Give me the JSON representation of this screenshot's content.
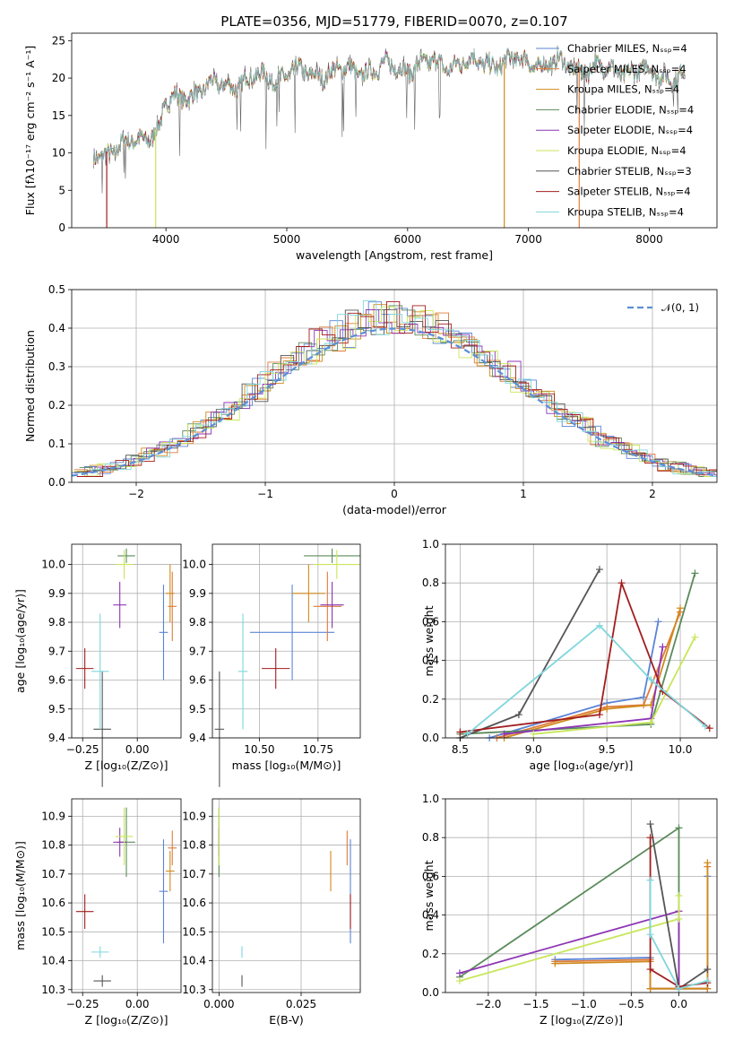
{
  "colors": {
    "chabrier_miles": "#5b84d6",
    "salpeter_miles": "#e07b39",
    "kroupa_miles": "#cf8a1d",
    "chabrier_elodie": "#5a8a5a",
    "salpeter_elodie": "#8e35b5",
    "kroupa_elodie": "#c8e65a",
    "chabrier_stelib": "#555555",
    "salpeter_stelib": "#a31d1d",
    "kroupa_stelib": "#7fd6dc",
    "normal": "#5b8fd6",
    "grid": "#b0b0b0"
  },
  "chart_data": [
    {
      "id": "spectrum",
      "type": "line",
      "title": "PLATE=0356, MJD=51779, FIBERID=0070, z=0.107",
      "xlabel": "wavelength [Angstrom, rest frame]",
      "ylabel": "Flux [fλ10⁻¹⁷ erg cm⁻² s⁻¹ A⁻¹]",
      "xlim": [
        3220,
        8560
      ],
      "ylim": [
        0,
        26
      ],
      "xticks": [
        4000,
        5000,
        6000,
        7000,
        8000
      ],
      "yticks": [
        0,
        5,
        10,
        15,
        20,
        25
      ],
      "grid": false,
      "legend_position": "top-right",
      "legend": [
        "Chabrier MILES, Nₛₛₚ=4",
        "Salpeter MILES, Nₛₛₚ=4",
        "Kroupa MILES, Nₛₛₚ=4",
        "Chabrier ELODIE, Nₛₛₚ=4",
        "Salpeter ELODIE, Nₛₛₚ=4",
        "Kroupa ELODIE, Nₛₛₚ=4",
        "Chabrier STELIB, Nₛₛₚ=3",
        "Salpeter STELIB, Nₛₛₚ=4",
        "Kroupa STELIB, Nₛₛₚ=4"
      ],
      "continuum": {
        "x": [
          3400,
          3600,
          3800,
          3950,
          4000,
          4200,
          4400,
          4600,
          4800,
          5000,
          5200,
          5400,
          5600,
          5800,
          6000,
          6200,
          6400,
          6600,
          6800,
          7000,
          7200,
          7400,
          7600,
          7800,
          8000,
          8200,
          8300
        ],
        "y": [
          9.8,
          10.5,
          12.0,
          13.5,
          16.5,
          18.0,
          18.8,
          19.5,
          20.0,
          20.5,
          20.6,
          20.8,
          21.0,
          21.3,
          21.5,
          21.8,
          22.0,
          22.0,
          22.1,
          22.2,
          21.8,
          21.5,
          21.2,
          21.0,
          20.7,
          20.3,
          20.0
        ]
      },
      "dips": [
        {
          "x": 3510,
          "y": 0,
          "series": "salpeter_stelib"
        },
        {
          "x": 3915,
          "y": 0,
          "series": "kroupa_elodie"
        },
        {
          "x": 6800,
          "y": 0,
          "series": "kroupa_miles"
        },
        {
          "x": 7420,
          "y": 0,
          "series": "salpeter_miles"
        }
      ]
    },
    {
      "id": "residuals",
      "type": "histogram",
      "xlabel": "(data-model)/error",
      "ylabel": "Normed distribution",
      "xlim": [
        -2.5,
        2.5
      ],
      "ylim": [
        0,
        0.5
      ],
      "xticks": [
        -2,
        -1,
        0,
        1,
        2
      ],
      "yticks": [
        0.0,
        0.1,
        0.2,
        0.3,
        0.4,
        0.5
      ],
      "grid": true,
      "legend_position": "top-right",
      "legend": [
        "𝒩(0, 1)"
      ],
      "bin_width": 0.1
    },
    {
      "id": "age_vs_Z",
      "type": "scatter",
      "xlabel": "Z [log₁₀(Z/Z⊙)]",
      "ylabel": "age  [log₁₀(age/yr)]",
      "xlim": [
        -0.3,
        0.2
      ],
      "ylim": [
        9.4,
        10.07
      ],
      "xticks": [
        -0.25,
        0.0
      ],
      "yticks": [
        9.4,
        9.5,
        9.6,
        9.7,
        9.8,
        9.9,
        10.0
      ],
      "grid": true
    },
    {
      "id": "age_vs_mass",
      "type": "scatter",
      "xlabel": "mass [log₁₀(M/M⊙)]",
      "xlim": [
        10.3,
        10.93
      ],
      "ylim": [
        9.4,
        10.07
      ],
      "xticks": [
        10.5,
        10.75
      ],
      "yticks": [
        9.4,
        9.5,
        9.6,
        9.7,
        9.8,
        9.9,
        10.0
      ],
      "grid": true
    },
    {
      "id": "mass_vs_Z",
      "type": "scatter",
      "xlabel": "Z [log₁₀(Z/Z⊙)]",
      "ylabel": "mass [log₁₀(M/M⊙)]",
      "xlim": [
        -0.3,
        0.2
      ],
      "ylim": [
        10.29,
        10.96
      ],
      "xticks": [
        -0.25,
        0.0
      ],
      "yticks": [
        10.3,
        10.4,
        10.5,
        10.6,
        10.7,
        10.8,
        10.9
      ],
      "grid": true
    },
    {
      "id": "mass_vs_ebv",
      "type": "scatter",
      "xlabel": "E(B-V)",
      "xlim": [
        -0.002,
        0.043
      ],
      "ylim": [
        10.29,
        10.96
      ],
      "xticks": [
        0.0,
        0.025
      ],
      "yticks": [
        10.3,
        10.4,
        10.5,
        10.6,
        10.7,
        10.8,
        10.9
      ],
      "grid": true
    },
    {
      "id": "weight_vs_age",
      "type": "line",
      "xlabel": "age  [log₁₀(age/yr)]",
      "ylabel": "mass weight",
      "xlim": [
        8.4,
        10.25
      ],
      "ylim": [
        0,
        1
      ],
      "xticks": [
        8.5,
        9.0,
        9.5,
        10.0
      ],
      "yticks": [
        0.0,
        0.2,
        0.4,
        0.6,
        0.8,
        1.0
      ],
      "grid": true
    },
    {
      "id": "weight_vs_Z",
      "type": "line",
      "xlabel": "Z [log₁₀(Z/Z⊙)]",
      "ylabel": "mass weight",
      "xlim": [
        -2.45,
        0.4
      ],
      "ylim": [
        0,
        1
      ],
      "xticks": [
        -2.0,
        -1.5,
        -1.0,
        -0.5,
        0.0
      ],
      "yticks": [
        0.0,
        0.2,
        0.4,
        0.6,
        0.8,
        1.0
      ],
      "grid": true
    }
  ],
  "models": [
    {
      "key": "chabrier_miles",
      "Z": 0.12,
      "Zerr": 0.02,
      "age": 9.765,
      "ageerr": 0.165,
      "mass": 10.64,
      "masserr": 0.18,
      "ebv": 0.04,
      "wa": [
        [
          8.7,
          0.0
        ],
        [
          9.5,
          0.18
        ],
        [
          9.75,
          0.21
        ],
        [
          9.85,
          0.6
        ]
      ],
      "wz": [
        [
          -1.3,
          0.17
        ],
        [
          -0.3,
          0.18
        ],
        [
          -0.3,
          0.02
        ],
        [
          0.3,
          0.02
        ],
        [
          0.3,
          0.6
        ]
      ]
    },
    {
      "key": "salpeter_miles",
      "Z": 0.16,
      "Zerr": 0.02,
      "age": 9.855,
      "ageerr": 0.12,
      "mass": 10.79,
      "masserr": 0.06,
      "ebv": 0.039,
      "wa": [
        [
          8.75,
          0.0
        ],
        [
          9.5,
          0.16
        ],
        [
          9.75,
          0.17
        ],
        [
          10.0,
          0.65
        ]
      ],
      "wz": [
        [
          -1.3,
          0.16
        ],
        [
          -0.3,
          0.17
        ],
        [
          -0.3,
          0.02
        ],
        [
          0.3,
          0.02
        ],
        [
          0.3,
          0.65
        ]
      ]
    },
    {
      "key": "kroupa_miles",
      "Z": 0.15,
      "Zerr": 0.02,
      "age": 9.9,
      "ageerr": 0.1,
      "mass": 10.71,
      "masserr": 0.07,
      "ebv": 0.034,
      "wa": [
        [
          8.8,
          0.0
        ],
        [
          9.5,
          0.15
        ],
        [
          9.8,
          0.17
        ],
        [
          10.0,
          0.67
        ]
      ],
      "wz": [
        [
          -1.3,
          0.15
        ],
        [
          -0.3,
          0.16
        ],
        [
          -0.3,
          0.02
        ],
        [
          0.3,
          0.02
        ],
        [
          0.3,
          0.67
        ]
      ]
    },
    {
      "key": "chabrier_elodie",
      "Z": -0.05,
      "Zerr": 0.04,
      "age": 10.03,
      "ageerr": 0.025,
      "mass": 10.81,
      "masserr": 0.12,
      "ebv": 0.0,
      "wa": [
        [
          8.5,
          0.02
        ],
        [
          9.8,
          0.07
        ],
        [
          10.1,
          0.85
        ]
      ],
      "wz": [
        [
          -2.3,
          0.08
        ],
        [
          0.0,
          0.85
        ],
        [
          0.0,
          0.02
        ]
      ]
    },
    {
      "key": "salpeter_elodie",
      "Z": -0.08,
      "Zerr": 0.03,
      "age": 9.86,
      "ageerr": 0.08,
      "mass": 10.81,
      "masserr": 0.05,
      "ebv": 0.0,
      "wa": [
        [
          8.8,
          0.02
        ],
        [
          9.8,
          0.1
        ],
        [
          9.88,
          0.47
        ]
      ],
      "wz": [
        [
          -2.3,
          0.1
        ],
        [
          0.0,
          0.42
        ],
        [
          0.0,
          0.02
        ]
      ]
    },
    {
      "key": "kroupa_elodie",
      "Z": -0.06,
      "Zerr": 0.04,
      "age": 10.0,
      "ageerr": 0.05,
      "mass": 10.83,
      "masserr": 0.1,
      "ebv": 0.0,
      "wa": [
        [
          9.0,
          0.02
        ],
        [
          9.8,
          0.08
        ],
        [
          10.1,
          0.52
        ]
      ],
      "wz": [
        [
          -2.3,
          0.06
        ],
        [
          0.0,
          0.38
        ],
        [
          0.0,
          0.5
        ]
      ]
    },
    {
      "key": "chabrier_stelib",
      "Z": -0.16,
      "Zerr": 0.04,
      "age": 9.43,
      "ageerr": 0.2,
      "mass": 10.33,
      "masserr": 0.02,
      "ebv": 0.007,
      "wa": [
        [
          8.5,
          0.0
        ],
        [
          8.9,
          0.12
        ],
        [
          9.45,
          0.87
        ]
      ],
      "wz": [
        [
          -0.3,
          0.87
        ],
        [
          0.0,
          0.02
        ],
        [
          0.3,
          0.12
        ]
      ]
    },
    {
      "key": "salpeter_stelib",
      "Z": -0.24,
      "Zerr": 0.04,
      "age": 9.64,
      "ageerr": 0.07,
      "mass": 10.57,
      "masserr": 0.06,
      "ebv": 0.04,
      "wa": [
        [
          8.5,
          0.03
        ],
        [
          9.45,
          0.12
        ],
        [
          9.6,
          0.8
        ],
        [
          9.88,
          0.24
        ],
        [
          10.2,
          0.05
        ]
      ],
      "wz": [
        [
          -0.3,
          0.8
        ],
        [
          -0.3,
          0.12
        ],
        [
          0.0,
          0.03
        ],
        [
          0.3,
          0.05
        ]
      ]
    },
    {
      "key": "kroupa_stelib",
      "Z": -0.17,
      "Zerr": 0.04,
      "age": 9.63,
      "ageerr": 0.2,
      "mass": 10.43,
      "masserr": 0.02,
      "ebv": 0.007,
      "wa": [
        [
          8.55,
          0.02
        ],
        [
          9.45,
          0.58
        ],
        [
          9.8,
          0.3
        ],
        [
          10.17,
          0.06
        ]
      ],
      "wz": [
        [
          -0.3,
          0.58
        ],
        [
          -0.3,
          0.3
        ],
        [
          0.0,
          0.02
        ],
        [
          0.3,
          0.06
        ]
      ]
    }
  ]
}
